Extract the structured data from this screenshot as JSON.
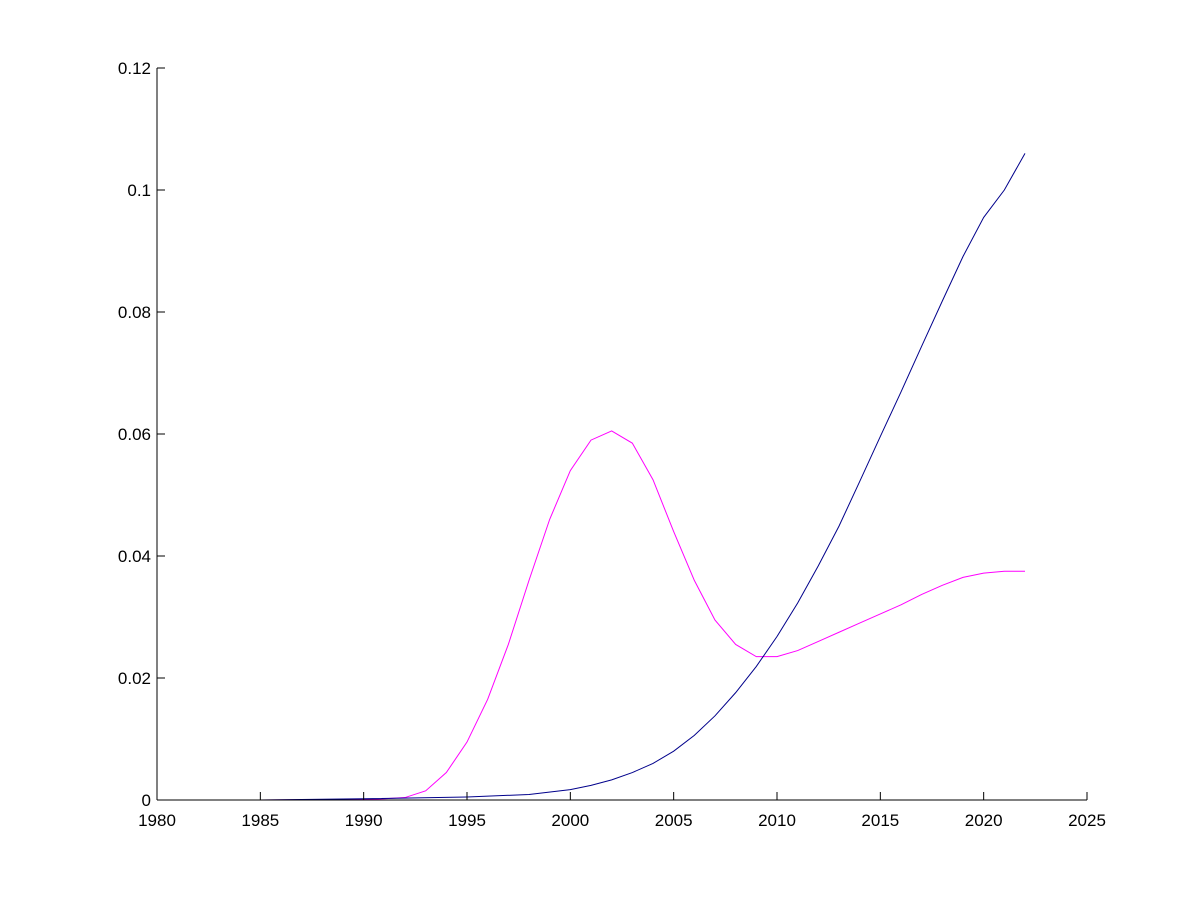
{
  "chart_data": {
    "type": "line",
    "title": "",
    "xlabel": "",
    "ylabel": "",
    "xlim": [
      1980,
      2025
    ],
    "ylim": [
      0,
      0.12
    ],
    "x_ticks": [
      1980,
      1985,
      1990,
      1995,
      2000,
      2005,
      2010,
      2015,
      2020,
      2025
    ],
    "x_tick_labels": [
      "1980",
      "1985",
      "1990",
      "1995",
      "2000",
      "2005",
      "2010",
      "2015",
      "2020",
      "2025"
    ],
    "y_ticks": [
      0,
      0.02,
      0.04,
      0.06,
      0.08,
      0.1,
      0.12
    ],
    "y_tick_labels": [
      "0",
      "0.02",
      "0.04",
      "0.06",
      "0.08",
      "0.1",
      "0.12"
    ],
    "grid": false,
    "legend": "none",
    "series": [
      {
        "color": "#ff00ff",
        "x": [
          1980,
          1985,
          1990,
          1991,
          1992,
          1993,
          1994,
          1995,
          1996,
          1997,
          1998,
          1999,
          2000,
          2001,
          2002,
          2003,
          2004,
          2005,
          2006,
          2007,
          2008,
          2009,
          2010,
          2011,
          2012,
          2013,
          2014,
          2015,
          2016,
          2017,
          2018,
          2019,
          2020,
          2021,
          2022
        ],
        "values": [
          0,
          0,
          0.0001,
          0.0002,
          0.0004,
          0.0015,
          0.0045,
          0.0095,
          0.0165,
          0.0255,
          0.036,
          0.046,
          0.054,
          0.059,
          0.0605,
          0.0585,
          0.0525,
          0.044,
          0.036,
          0.0295,
          0.0255,
          0.0235,
          0.0235,
          0.0245,
          0.026,
          0.0275,
          0.029,
          0.0305,
          0.032,
          0.0337,
          0.0352,
          0.0365,
          0.0372,
          0.0375,
          0.0375
        ]
      },
      {
        "color": "#00008b",
        "x": [
          1980,
          1985,
          1990,
          1995,
          1998,
          2000,
          2001,
          2002,
          2003,
          2004,
          2005,
          2006,
          2007,
          2008,
          2009,
          2010,
          2011,
          2012,
          2013,
          2014,
          2015,
          2016,
          2017,
          2018,
          2019,
          2020,
          2021,
          2022
        ],
        "values": [
          0,
          0,
          0.0002,
          0.0005,
          0.0009,
          0.0017,
          0.0024,
          0.0033,
          0.0045,
          0.006,
          0.008,
          0.0106,
          0.0138,
          0.0176,
          0.0219,
          0.0268,
          0.0323,
          0.0384,
          0.0449,
          0.0522,
          0.0596,
          0.0669,
          0.0744,
          0.0818,
          0.0891,
          0.0955,
          0.1,
          0.106
        ]
      }
    ]
  }
}
